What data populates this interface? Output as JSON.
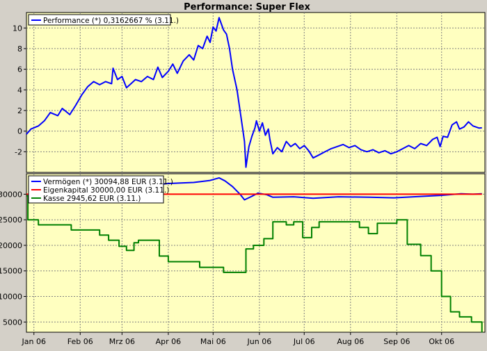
{
  "title": "Performance: Super Flex",
  "colors": {
    "frame_bg": "#ffffc0",
    "grid": "#808080",
    "window_bg": "#d4d0c8",
    "blue": "#0000ff",
    "red": "#ff0000",
    "green": "#008000"
  },
  "chart_data": [
    {
      "type": "line",
      "name": "performance",
      "ylim": [
        -4,
        11.5
      ],
      "yticks": [
        -2,
        0,
        2,
        4,
        6,
        8,
        10
      ],
      "legend_position": "top-left",
      "legend": [
        {
          "label": "Performance (*) 0,3162667 % (3.11.)",
          "color": "#0000ff"
        }
      ],
      "x_start": "2006-01-02",
      "x_end": "2006-11-05",
      "series": [
        {
          "color": "#0000ff",
          "points": [
            [
              "2006-01-02",
              -0.3
            ],
            [
              "2006-01-05",
              0.2
            ],
            [
              "2006-01-10",
              0.5
            ],
            [
              "2006-01-14",
              1.0
            ],
            [
              "2006-01-18",
              1.8
            ],
            [
              "2006-01-23",
              1.5
            ],
            [
              "2006-01-26",
              2.2
            ],
            [
              "2006-01-31",
              1.6
            ],
            [
              "2006-02-04",
              2.5
            ],
            [
              "2006-02-08",
              3.5
            ],
            [
              "2006-02-12",
              4.3
            ],
            [
              "2006-02-16",
              4.8
            ],
            [
              "2006-02-20",
              4.5
            ],
            [
              "2006-02-24",
              4.8
            ],
            [
              "2006-02-28",
              4.6
            ],
            [
              "2006-03-01",
              6.1
            ],
            [
              "2006-03-04",
              5.0
            ],
            [
              "2006-03-07",
              5.3
            ],
            [
              "2006-03-10",
              4.2
            ],
            [
              "2006-03-13",
              4.6
            ],
            [
              "2006-03-16",
              5.0
            ],
            [
              "2006-03-20",
              4.8
            ],
            [
              "2006-03-24",
              5.3
            ],
            [
              "2006-03-28",
              5.0
            ],
            [
              "2006-03-31",
              6.2
            ],
            [
              "2006-04-03",
              5.2
            ],
            [
              "2006-04-07",
              5.8
            ],
            [
              "2006-04-10",
              6.5
            ],
            [
              "2006-04-13",
              5.6
            ],
            [
              "2006-04-17",
              6.8
            ],
            [
              "2006-04-21",
              7.4
            ],
            [
              "2006-04-24",
              6.9
            ],
            [
              "2006-04-27",
              8.3
            ],
            [
              "2006-04-30",
              8.0
            ],
            [
              "2006-05-03",
              9.2
            ],
            [
              "2006-05-05",
              8.6
            ],
            [
              "2006-05-07",
              10.1
            ],
            [
              "2006-05-09",
              9.7
            ],
            [
              "2006-05-11",
              11.0
            ],
            [
              "2006-05-14",
              9.8
            ],
            [
              "2006-05-16",
              9.4
            ],
            [
              "2006-05-18",
              8.0
            ],
            [
              "2006-05-20",
              6.0
            ],
            [
              "2006-05-23",
              4.0
            ],
            [
              "2006-05-25",
              2.0
            ],
            [
              "2006-05-27",
              0.0
            ],
            [
              "2006-05-28",
              -1.0
            ],
            [
              "2006-05-29",
              -3.5
            ],
            [
              "2006-05-31",
              -1.5
            ],
            [
              "2006-06-02",
              -0.5
            ],
            [
              "2006-06-04",
              0.3
            ],
            [
              "2006-06-05",
              1.0
            ],
            [
              "2006-06-07",
              0.0
            ],
            [
              "2006-06-09",
              0.8
            ],
            [
              "2006-06-11",
              -0.4
            ],
            [
              "2006-06-13",
              0.2
            ],
            [
              "2006-06-14",
              -0.8
            ],
            [
              "2006-06-16",
              -2.2
            ],
            [
              "2006-06-19",
              -1.6
            ],
            [
              "2006-06-22",
              -2.0
            ],
            [
              "2006-06-25",
              -1.0
            ],
            [
              "2006-06-28",
              -1.5
            ],
            [
              "2006-07-01",
              -1.2
            ],
            [
              "2006-07-04",
              -1.7
            ],
            [
              "2006-07-07",
              -1.4
            ],
            [
              "2006-07-10",
              -1.9
            ],
            [
              "2006-07-13",
              -2.6
            ],
            [
              "2006-07-17",
              -2.3
            ],
            [
              "2006-07-21",
              -2.0
            ],
            [
              "2006-07-25",
              -1.7
            ],
            [
              "2006-07-29",
              -1.5
            ],
            [
              "2006-08-02",
              -1.3
            ],
            [
              "2006-08-06",
              -1.6
            ],
            [
              "2006-08-10",
              -1.4
            ],
            [
              "2006-08-14",
              -1.8
            ],
            [
              "2006-08-18",
              -2.0
            ],
            [
              "2006-08-22",
              -1.8
            ],
            [
              "2006-08-26",
              -2.1
            ],
            [
              "2006-08-30",
              -1.9
            ],
            [
              "2006-09-03",
              -2.2
            ],
            [
              "2006-09-07",
              -2.0
            ],
            [
              "2006-09-11",
              -1.7
            ],
            [
              "2006-09-15",
              -1.4
            ],
            [
              "2006-09-19",
              -1.7
            ],
            [
              "2006-09-23",
              -1.2
            ],
            [
              "2006-09-27",
              -1.4
            ],
            [
              "2006-10-01",
              -0.8
            ],
            [
              "2006-10-04",
              -0.6
            ],
            [
              "2006-10-06",
              -1.5
            ],
            [
              "2006-10-08",
              -0.5
            ],
            [
              "2006-10-11",
              -0.6
            ],
            [
              "2006-10-14",
              0.6
            ],
            [
              "2006-10-17",
              0.9
            ],
            [
              "2006-10-19",
              0.2
            ],
            [
              "2006-10-22",
              0.4
            ],
            [
              "2006-10-25",
              0.9
            ],
            [
              "2006-10-28",
              0.5
            ],
            [
              "2006-11-01",
              0.3
            ],
            [
              "2006-11-03",
              0.32
            ]
          ]
        }
      ]
    },
    {
      "type": "line",
      "name": "assets",
      "ylim": [
        3000,
        34000
      ],
      "yticks": [
        5000,
        10000,
        15000,
        20000,
        25000,
        30000
      ],
      "legend_position": "top-left",
      "legend": [
        {
          "label": "Vermögen (*) 30094,88 EUR (3.11.)",
          "color": "#0000ff"
        },
        {
          "label": "Eigenkapital 30000,00 EUR (3.11.)",
          "color": "#ff0000"
        },
        {
          "label": "Kasse 2945,62 EUR (3.11.)",
          "color": "#008000"
        }
      ],
      "x_start": "2006-01-02",
      "x_end": "2006-11-05",
      "xticks": [
        "Jan 06",
        "Feb 06",
        "Mrz 06",
        "Apr 06",
        "Mai 06",
        "Jun 06",
        "Jul 06",
        "Aug 06",
        "Sep 06",
        "Okt 06"
      ],
      "xtick_dates": [
        "2006-01-07",
        "2006-02-07",
        "2006-03-07",
        "2006-04-07",
        "2006-05-07",
        "2006-06-07",
        "2006-07-07",
        "2006-08-07",
        "2006-09-07",
        "2006-10-07"
      ],
      "series": [
        {
          "color": "#0000ff",
          "points": [
            [
              "2006-01-02",
              29950
            ],
            [
              "2006-01-20",
              30500
            ],
            [
              "2006-02-10",
              31300
            ],
            [
              "2006-03-01",
              31800
            ],
            [
              "2006-03-20",
              31600
            ],
            [
              "2006-04-07",
              32100
            ],
            [
              "2006-04-24",
              32300
            ],
            [
              "2006-05-05",
              32700
            ],
            [
              "2006-05-11",
              33200
            ],
            [
              "2006-05-15",
              32600
            ],
            [
              "2006-05-20",
              31500
            ],
            [
              "2006-05-25",
              30000
            ],
            [
              "2006-05-28",
              28900
            ],
            [
              "2006-06-02",
              29600
            ],
            [
              "2006-06-06",
              30200
            ],
            [
              "2006-06-12",
              29900
            ],
            [
              "2006-06-16",
              29400
            ],
            [
              "2006-06-30",
              29500
            ],
            [
              "2006-07-13",
              29200
            ],
            [
              "2006-07-30",
              29500
            ],
            [
              "2006-08-20",
              29400
            ],
            [
              "2006-09-05",
              29300
            ],
            [
              "2006-09-25",
              29600
            ],
            [
              "2006-10-08",
              29800
            ],
            [
              "2006-10-20",
              30100
            ],
            [
              "2006-10-28",
              30000
            ],
            [
              "2006-11-03",
              30095
            ]
          ]
        },
        {
          "color": "#ff0000",
          "points": [
            [
              "2006-01-02",
              30000
            ],
            [
              "2006-11-03",
              30000
            ]
          ]
        },
        {
          "color": "#008000",
          "step": true,
          "points": [
            [
              "2006-01-02",
              29700
            ],
            [
              "2006-01-03",
              25000
            ],
            [
              "2006-01-10",
              24000
            ],
            [
              "2006-02-01",
              23000
            ],
            [
              "2006-02-20",
              22000
            ],
            [
              "2006-02-26",
              21000
            ],
            [
              "2006-03-05",
              19800
            ],
            [
              "2006-03-10",
              19000
            ],
            [
              "2006-03-15",
              20500
            ],
            [
              "2006-03-18",
              21000
            ],
            [
              "2006-04-01",
              17900
            ],
            [
              "2006-04-07",
              16800
            ],
            [
              "2006-04-28",
              15700
            ],
            [
              "2006-05-14",
              14700
            ],
            [
              "2006-05-29",
              19300
            ],
            [
              "2006-06-03",
              20000
            ],
            [
              "2006-06-10",
              21300
            ],
            [
              "2006-06-16",
              24600
            ],
            [
              "2006-06-25",
              24000
            ],
            [
              "2006-06-30",
              24600
            ],
            [
              "2006-07-06",
              21500
            ],
            [
              "2006-07-12",
              23500
            ],
            [
              "2006-07-17",
              24600
            ],
            [
              "2006-08-13",
              23500
            ],
            [
              "2006-08-19",
              22300
            ],
            [
              "2006-08-25",
              24300
            ],
            [
              "2006-09-07",
              25000
            ],
            [
              "2006-09-14",
              20200
            ],
            [
              "2006-09-23",
              18000
            ],
            [
              "2006-09-30",
              15000
            ],
            [
              "2006-10-07",
              10000
            ],
            [
              "2006-10-13",
              7000
            ],
            [
              "2006-10-19",
              6000
            ],
            [
              "2006-10-27",
              5000
            ],
            [
              "2006-11-03",
              2946
            ]
          ]
        }
      ]
    }
  ]
}
